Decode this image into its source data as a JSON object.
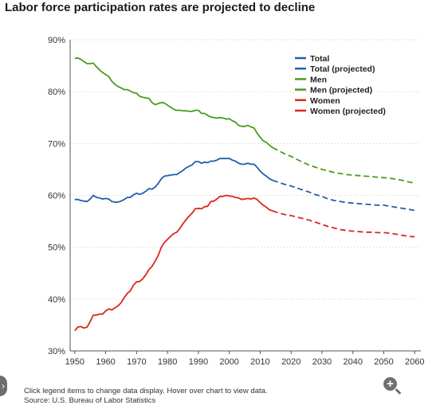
{
  "title": "Labor force participation rates are projected to decline",
  "footer": {
    "line1": "Click legend items to change data display. Hover over chart to view data.",
    "line2": "Source: U.S. Bureau of Labor Statistics"
  },
  "icons": {
    "side": "chevron-right-icon",
    "zoom": "zoom-in-icon"
  },
  "chart_data": {
    "type": "line",
    "title": "Labor force participation rates are projected to decline",
    "xlabel": "",
    "ylabel": "",
    "xlim": [
      1948.5,
      2062
    ],
    "ylim": [
      30,
      90
    ],
    "x_ticks": [
      1950,
      1960,
      1970,
      1980,
      1990,
      2000,
      2010,
      2020,
      2030,
      2040,
      2050,
      2060
    ],
    "y_ticks": [
      30,
      40,
      50,
      60,
      70,
      80,
      90
    ],
    "y_tick_labels": [
      "30%",
      "40%",
      "50%",
      "60%",
      "70%",
      "80%",
      "90%"
    ],
    "grid": "horizontal dotted",
    "legend_position": "top-right",
    "series": [
      {
        "name": "Total",
        "color": "#1f5fa8",
        "style": "solid",
        "x": [
          1950,
          1951,
          1952,
          1953,
          1954,
          1955,
          1956,
          1957,
          1958,
          1959,
          1960,
          1961,
          1962,
          1963,
          1964,
          1965,
          1966,
          1967,
          1968,
          1969,
          1970,
          1971,
          1972,
          1973,
          1974,
          1975,
          1976,
          1977,
          1978,
          1979,
          1980,
          1981,
          1982,
          1983,
          1984,
          1985,
          1986,
          1987,
          1988,
          1989,
          1990,
          1991,
          1992,
          1993,
          1994,
          1995,
          1996,
          1997,
          1998,
          1999,
          2000,
          2001,
          2002,
          2003,
          2004,
          2005,
          2006,
          2007,
          2008,
          2009,
          2010,
          2011,
          2012,
          2013,
          2014
        ],
        "y": [
          59.2,
          59.2,
          59.0,
          58.9,
          58.8,
          59.3,
          60.0,
          59.6,
          59.5,
          59.3,
          59.4,
          59.3,
          58.8,
          58.7,
          58.7,
          58.9,
          59.2,
          59.6,
          59.6,
          60.1,
          60.4,
          60.2,
          60.4,
          60.8,
          61.3,
          61.2,
          61.6,
          62.3,
          63.2,
          63.7,
          63.8,
          63.9,
          64.0,
          64.0,
          64.4,
          64.8,
          65.3,
          65.6,
          65.9,
          66.5,
          66.5,
          66.2,
          66.4,
          66.3,
          66.6,
          66.6,
          66.8,
          67.1,
          67.1,
          67.1,
          67.1,
          66.8,
          66.6,
          66.2,
          66.0,
          66.0,
          66.2,
          66.0,
          66.0,
          65.4,
          64.7,
          64.1,
          63.7,
          63.2,
          62.9
        ]
      },
      {
        "name": "Total (projected)",
        "color": "#1f5fa8",
        "style": "dashed",
        "x": [
          2014,
          2016,
          2018,
          2020,
          2022,
          2024,
          2026,
          2028,
          2030,
          2032,
          2034,
          2036,
          2038,
          2040,
          2042,
          2044,
          2046,
          2048,
          2050,
          2052,
          2054,
          2056,
          2058,
          2060
        ],
        "y": [
          62.9,
          62.5,
          62.1,
          61.8,
          61.4,
          61.0,
          60.6,
          60.1,
          59.8,
          59.3,
          59.0,
          58.8,
          58.6,
          58.5,
          58.4,
          58.3,
          58.2,
          58.1,
          58.1,
          57.9,
          57.7,
          57.5,
          57.3,
          57.1
        ]
      },
      {
        "name": "Men",
        "color": "#4a9a1e",
        "style": "solid",
        "x": [
          1950,
          1951,
          1952,
          1953,
          1954,
          1955,
          1956,
          1957,
          1958,
          1959,
          1960,
          1961,
          1962,
          1963,
          1964,
          1965,
          1966,
          1967,
          1968,
          1969,
          1970,
          1971,
          1972,
          1973,
          1974,
          1975,
          1976,
          1977,
          1978,
          1979,
          1980,
          1981,
          1982,
          1983,
          1984,
          1985,
          1986,
          1987,
          1988,
          1989,
          1990,
          1991,
          1992,
          1993,
          1994,
          1995,
          1996,
          1997,
          1998,
          1999,
          2000,
          2001,
          2002,
          2003,
          2004,
          2005,
          2006,
          2007,
          2008,
          2009,
          2010,
          2011,
          2012,
          2013,
          2014
        ],
        "y": [
          86.4,
          86.5,
          86.2,
          85.8,
          85.4,
          85.4,
          85.5,
          84.8,
          84.2,
          83.7,
          83.3,
          82.9,
          82.0,
          81.4,
          81.0,
          80.7,
          80.4,
          80.4,
          80.1,
          79.8,
          79.7,
          79.1,
          78.9,
          78.8,
          78.7,
          77.9,
          77.5,
          77.7,
          77.9,
          77.8,
          77.4,
          77.0,
          76.6,
          76.4,
          76.4,
          76.3,
          76.3,
          76.2,
          76.2,
          76.4,
          76.4,
          75.8,
          75.8,
          75.4,
          75.1,
          75.0,
          74.9,
          75.0,
          74.9,
          74.7,
          74.8,
          74.4,
          74.1,
          73.5,
          73.3,
          73.3,
          73.5,
          73.2,
          73.0,
          72.0,
          71.2,
          70.5,
          70.2,
          69.7,
          69.2
        ]
      },
      {
        "name": "Men (projected)",
        "color": "#4a9a1e",
        "style": "dashed",
        "x": [
          2014,
          2016,
          2018,
          2020,
          2022,
          2024,
          2026,
          2028,
          2030,
          2032,
          2034,
          2036,
          2038,
          2040,
          2042,
          2044,
          2046,
          2048,
          2050,
          2052,
          2054,
          2056,
          2058,
          2060
        ],
        "y": [
          69.2,
          68.6,
          68.0,
          67.5,
          66.9,
          66.3,
          65.8,
          65.4,
          65.0,
          64.7,
          64.4,
          64.2,
          64.0,
          63.9,
          63.8,
          63.7,
          63.6,
          63.5,
          63.4,
          63.3,
          63.1,
          62.9,
          62.6,
          62.4
        ]
      },
      {
        "name": "Women",
        "color": "#d9271e",
        "style": "solid",
        "x": [
          1950,
          1951,
          1952,
          1953,
          1954,
          1955,
          1956,
          1957,
          1958,
          1959,
          1960,
          1961,
          1962,
          1963,
          1964,
          1965,
          1966,
          1967,
          1968,
          1969,
          1970,
          1971,
          1972,
          1973,
          1974,
          1975,
          1976,
          1977,
          1978,
          1979,
          1980,
          1981,
          1982,
          1983,
          1984,
          1985,
          1986,
          1987,
          1988,
          1989,
          1990,
          1991,
          1992,
          1993,
          1994,
          1995,
          1996,
          1997,
          1998,
          1999,
          2000,
          2001,
          2002,
          2003,
          2004,
          2005,
          2006,
          2007,
          2008,
          2009,
          2010,
          2011,
          2012,
          2013,
          2014
        ],
        "y": [
          33.9,
          34.6,
          34.7,
          34.4,
          34.6,
          35.7,
          36.9,
          36.9,
          37.1,
          37.1,
          37.7,
          38.1,
          37.9,
          38.3,
          38.7,
          39.3,
          40.3,
          41.1,
          41.6,
          42.7,
          43.3,
          43.4,
          43.9,
          44.7,
          45.7,
          46.3,
          47.3,
          48.4,
          50.0,
          50.9,
          51.5,
          52.1,
          52.6,
          52.9,
          53.6,
          54.5,
          55.3,
          56.0,
          56.6,
          57.4,
          57.5,
          57.4,
          57.8,
          57.9,
          58.8,
          58.9,
          59.3,
          59.8,
          59.8,
          60.0,
          59.9,
          59.8,
          59.6,
          59.5,
          59.2,
          59.3,
          59.4,
          59.3,
          59.5,
          59.2,
          58.6,
          58.1,
          57.7,
          57.2,
          57.0
        ]
      },
      {
        "name": "Women (projected)",
        "color": "#d9271e",
        "style": "dashed",
        "x": [
          2014,
          2016,
          2018,
          2020,
          2022,
          2024,
          2026,
          2028,
          2030,
          2032,
          2034,
          2036,
          2038,
          2040,
          2042,
          2044,
          2046,
          2048,
          2050,
          2052,
          2054,
          2056,
          2058,
          2060
        ],
        "y": [
          57.0,
          56.6,
          56.3,
          56.1,
          55.8,
          55.5,
          55.2,
          54.8,
          54.4,
          54.0,
          53.7,
          53.4,
          53.2,
          53.1,
          53.0,
          52.9,
          52.9,
          52.8,
          52.8,
          52.7,
          52.5,
          52.3,
          52.1,
          52.0
        ]
      }
    ]
  }
}
